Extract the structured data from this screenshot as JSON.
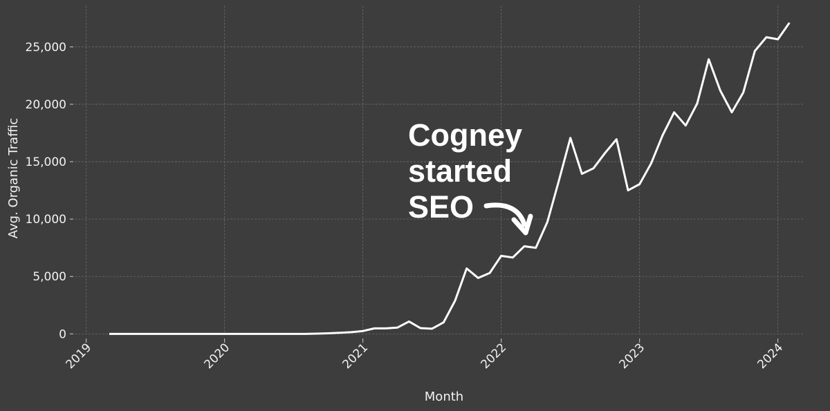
{
  "chart_data": {
    "type": "line",
    "x_label": "Month",
    "y_label": "Avg. Organic Traffic",
    "annotation": [
      "Cogney",
      "started",
      "SEO"
    ],
    "x": [
      "2019-03",
      "2019-04",
      "2019-05",
      "2019-06",
      "2019-07",
      "2019-08",
      "2019-09",
      "2019-10",
      "2019-11",
      "2019-12",
      "2020-01",
      "2020-02",
      "2020-03",
      "2020-04",
      "2020-05",
      "2020-06",
      "2020-07",
      "2020-08",
      "2020-09",
      "2020-10",
      "2020-11",
      "2020-12",
      "2021-01",
      "2021-02",
      "2021-03",
      "2021-04",
      "2021-05",
      "2021-06",
      "2021-07",
      "2021-08",
      "2021-09",
      "2021-10",
      "2021-11",
      "2021-12",
      "2022-01",
      "2022-02",
      "2022-03",
      "2022-04",
      "2022-05",
      "2022-06",
      "2022-07",
      "2022-08",
      "2022-09",
      "2022-10",
      "2022-11",
      "2022-12",
      "2023-01",
      "2023-02",
      "2023-03",
      "2023-04",
      "2023-05",
      "2023-06",
      "2023-07",
      "2023-08",
      "2023-09",
      "2023-10",
      "2023-11",
      "2023-12",
      "2024-01",
      "2024-02"
    ],
    "series": [
      {
        "name": "Avg. Organic Traffic",
        "color": "#ffffff",
        "values": [
          0,
          0,
          0,
          0,
          0,
          0,
          0,
          0,
          0,
          0,
          0,
          0,
          0,
          0,
          0,
          0,
          0,
          0,
          20,
          50,
          100,
          150,
          250,
          480,
          480,
          550,
          1080,
          500,
          450,
          1000,
          2900,
          5700,
          4870,
          5300,
          6800,
          6650,
          7630,
          7500,
          9740,
          13340,
          17070,
          13940,
          14420,
          15750,
          16950,
          12500,
          13040,
          14840,
          17300,
          19300,
          18150,
          20070,
          23920,
          21200,
          19300,
          21030,
          24640,
          25840,
          25660,
          27100
        ]
      }
    ],
    "xlim": [
      "2018-12",
      "2024-03"
    ],
    "xticks": [
      "2019",
      "2020",
      "2021",
      "2022",
      "2023",
      "2024"
    ],
    "ylim": [
      -400,
      28600
    ],
    "yticks": [
      0,
      {
        "value": 5000,
        "label": "5,000"
      },
      {
        "value": 10000,
        "label": "10,000"
      },
      {
        "value": 15000,
        "label": "15,000"
      },
      {
        "value": 20000,
        "label": "20,000"
      },
      {
        "value": 25000,
        "label": "25,000"
      }
    ],
    "grid": true
  }
}
